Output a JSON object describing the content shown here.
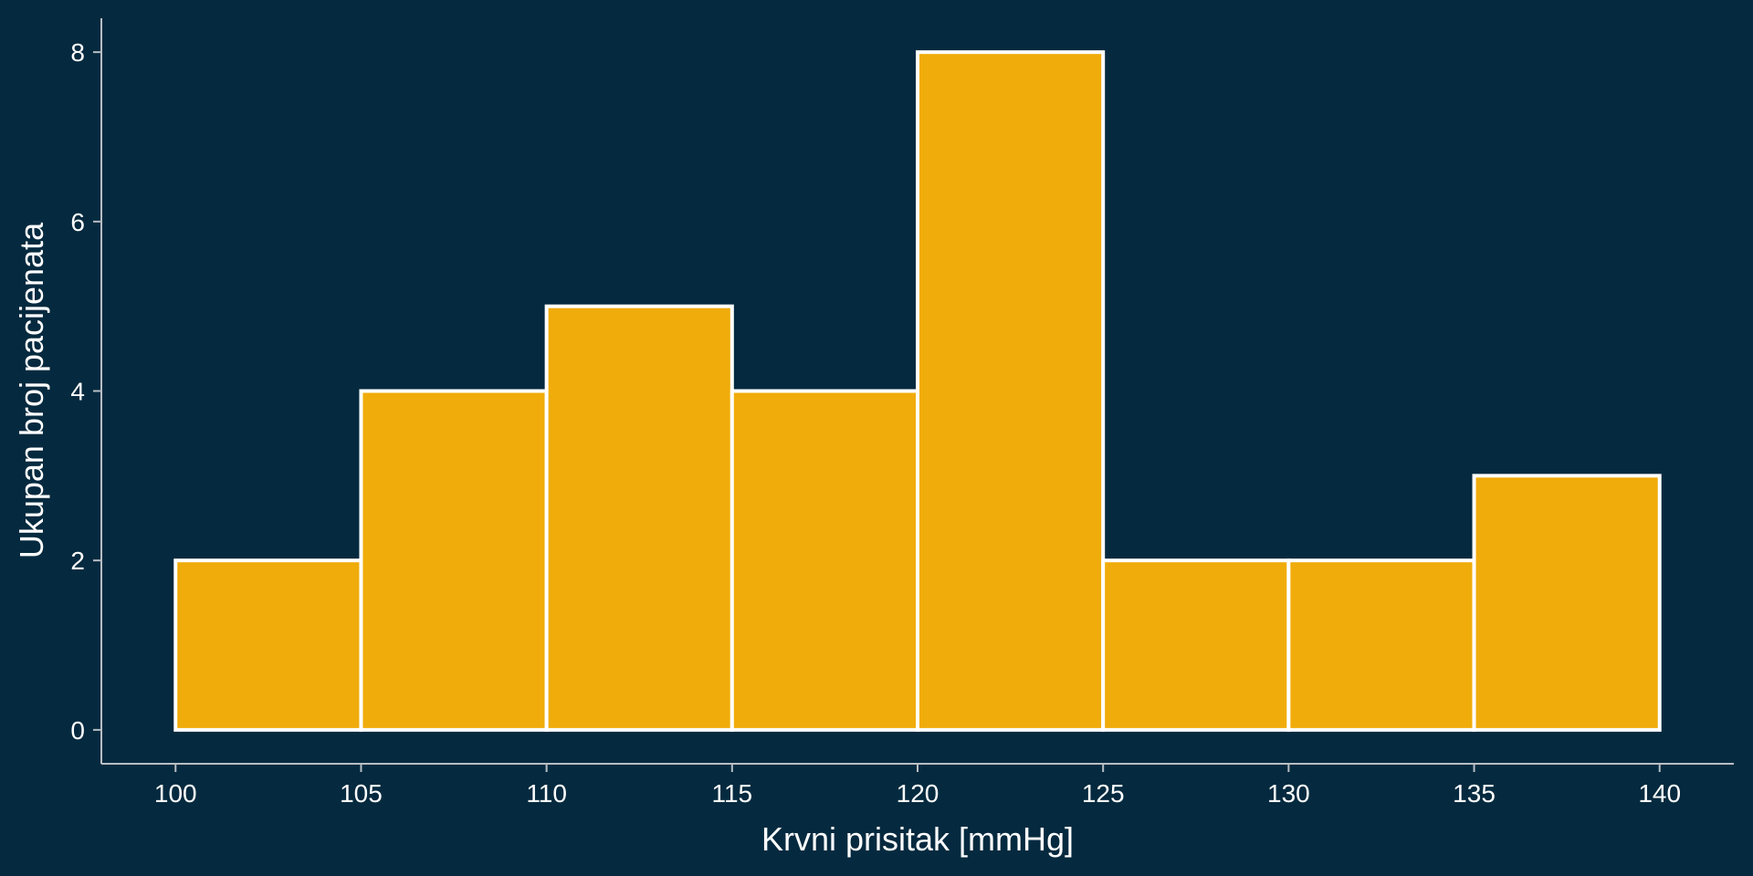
{
  "chart_data": {
    "type": "histogram",
    "title": "",
    "xlabel": "Krvni prisitak [mmHg]",
    "ylabel": "Ukupan broj pacijenata",
    "bins": [
      {
        "start": 100,
        "end": 105,
        "count": 2
      },
      {
        "start": 105,
        "end": 110,
        "count": 4
      },
      {
        "start": 110,
        "end": 115,
        "count": 5
      },
      {
        "start": 115,
        "end": 120,
        "count": 4
      },
      {
        "start": 120,
        "end": 125,
        "count": 8
      },
      {
        "start": 125,
        "end": 130,
        "count": 2
      },
      {
        "start": 130,
        "end": 135,
        "count": 2
      },
      {
        "start": 135,
        "end": 140,
        "count": 3
      }
    ],
    "xlim": [
      98,
      142
    ],
    "ylim": [
      -0.4,
      8.4
    ],
    "xticks": [
      100,
      105,
      110,
      115,
      120,
      125,
      130,
      135,
      140
    ],
    "yticks": [
      0,
      2,
      4,
      6,
      8
    ],
    "grid": false,
    "colors": {
      "background": "#052a3f",
      "bar_fill": "#f0ac0a",
      "bar_edge": "#ffffff",
      "axis": "#b8bec4",
      "text": "#ffffff"
    }
  }
}
